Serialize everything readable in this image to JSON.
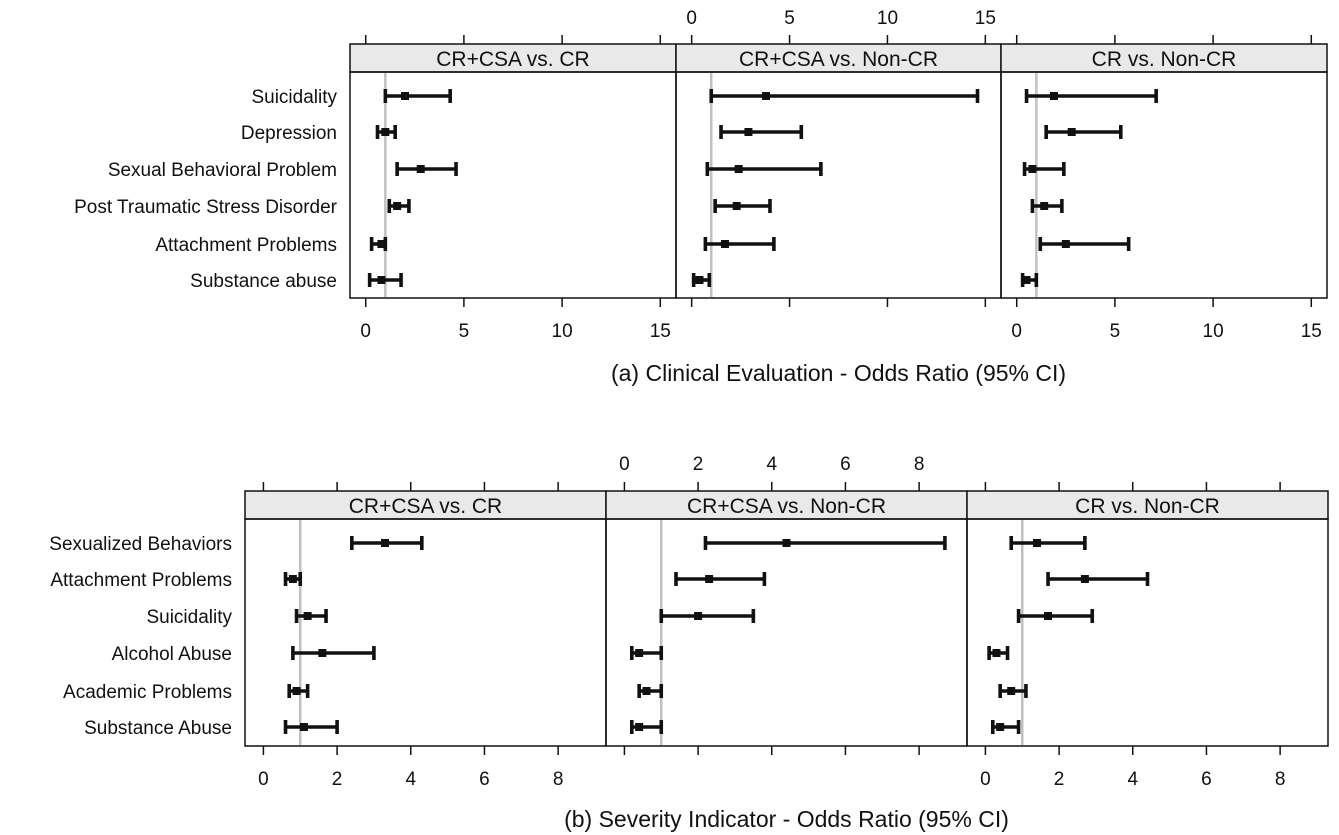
{
  "chart_data": [
    {
      "type": "forest",
      "xlabel": "(a) Clinical Evaluation - Odds Ratio (95% CI)",
      "reference_line": 1,
      "xlim": [
        -0.8,
        15.8
      ],
      "xticks": [
        0,
        5,
        10,
        15
      ],
      "xtick_labels": [
        "0",
        "5",
        "10",
        "15"
      ],
      "rows": [
        "Suicidality",
        "Depression",
        "Sexual Behavioral Problem",
        "Post Traumatic Stress Disorder",
        "Attachment Problems",
        "Substance abuse"
      ],
      "panels": [
        {
          "name": "CR+CSA vs. CR",
          "axis": "bottom",
          "estimates": [
            {
              "or": 2.0,
              "lo": 1.0,
              "hi": 4.3
            },
            {
              "or": 1.0,
              "lo": 0.6,
              "hi": 1.5
            },
            {
              "or": 2.8,
              "lo": 1.6,
              "hi": 4.6
            },
            {
              "or": 1.6,
              "lo": 1.2,
              "hi": 2.2
            },
            {
              "or": 0.8,
              "lo": 0.3,
              "hi": 1.0
            },
            {
              "or": 0.8,
              "lo": 0.2,
              "hi": 1.8
            }
          ]
        },
        {
          "name": "CR+CSA vs. Non-CR",
          "axis": "top",
          "estimates": [
            {
              "or": 3.8,
              "lo": 1.0,
              "hi": 14.6
            },
            {
              "or": 2.9,
              "lo": 1.5,
              "hi": 5.6
            },
            {
              "or": 2.4,
              "lo": 0.8,
              "hi": 6.6
            },
            {
              "or": 2.3,
              "lo": 1.2,
              "hi": 4.0
            },
            {
              "or": 1.7,
              "lo": 0.7,
              "hi": 4.2
            },
            {
              "or": 0.4,
              "lo": 0.1,
              "hi": 0.9
            }
          ]
        },
        {
          "name": "CR vs. Non-CR",
          "axis": "bottom",
          "estimates": [
            {
              "or": 1.9,
              "lo": 0.5,
              "hi": 7.1
            },
            {
              "or": 2.8,
              "lo": 1.5,
              "hi": 5.3
            },
            {
              "or": 0.8,
              "lo": 0.4,
              "hi": 2.4
            },
            {
              "or": 1.4,
              "lo": 0.8,
              "hi": 2.3
            },
            {
              "or": 2.5,
              "lo": 1.2,
              "hi": 5.7
            },
            {
              "or": 0.5,
              "lo": 0.3,
              "hi": 1.0
            }
          ]
        }
      ]
    },
    {
      "type": "forest",
      "xlabel": "(b) Severity Indicator - Odds Ratio (95% CI)",
      "reference_line": 1,
      "xlim": [
        -0.5,
        9.3
      ],
      "xticks": [
        0,
        2,
        4,
        6,
        8
      ],
      "xtick_labels": [
        "0",
        "2",
        "4",
        "6",
        "8"
      ],
      "rows": [
        "Sexualized Behaviors",
        "Attachment Problems",
        "Suicidality",
        "Alcohol Abuse",
        "Academic Problems",
        "Substance Abuse"
      ],
      "panels": [
        {
          "name": "CR+CSA vs. CR",
          "axis": "bottom",
          "estimates": [
            {
              "or": 3.3,
              "lo": 2.4,
              "hi": 4.3
            },
            {
              "or": 0.8,
              "lo": 0.6,
              "hi": 1.0
            },
            {
              "or": 1.2,
              "lo": 0.9,
              "hi": 1.7
            },
            {
              "or": 1.6,
              "lo": 0.8,
              "hi": 3.0
            },
            {
              "or": 0.9,
              "lo": 0.7,
              "hi": 1.2
            },
            {
              "or": 1.1,
              "lo": 0.6,
              "hi": 2.0
            }
          ]
        },
        {
          "name": "CR+CSA vs. Non-CR",
          "axis": "top",
          "estimates": [
            {
              "or": 4.4,
              "lo": 2.2,
              "hi": 8.7
            },
            {
              "or": 2.3,
              "lo": 1.4,
              "hi": 3.8
            },
            {
              "or": 2.0,
              "lo": 1.0,
              "hi": 3.5
            },
            {
              "or": 0.4,
              "lo": 0.2,
              "hi": 1.0
            },
            {
              "or": 0.6,
              "lo": 0.4,
              "hi": 1.0
            },
            {
              "or": 0.4,
              "lo": 0.2,
              "hi": 1.0
            }
          ]
        },
        {
          "name": "CR vs. Non-CR",
          "axis": "bottom",
          "estimates": [
            {
              "or": 1.4,
              "lo": 0.7,
              "hi": 2.7
            },
            {
              "or": 2.7,
              "lo": 1.7,
              "hi": 4.4
            },
            {
              "or": 1.7,
              "lo": 0.9,
              "hi": 2.9
            },
            {
              "or": 0.3,
              "lo": 0.1,
              "hi": 0.6
            },
            {
              "or": 0.7,
              "lo": 0.4,
              "hi": 1.1
            },
            {
              "or": 0.4,
              "lo": 0.2,
              "hi": 0.9
            }
          ]
        }
      ]
    }
  ]
}
